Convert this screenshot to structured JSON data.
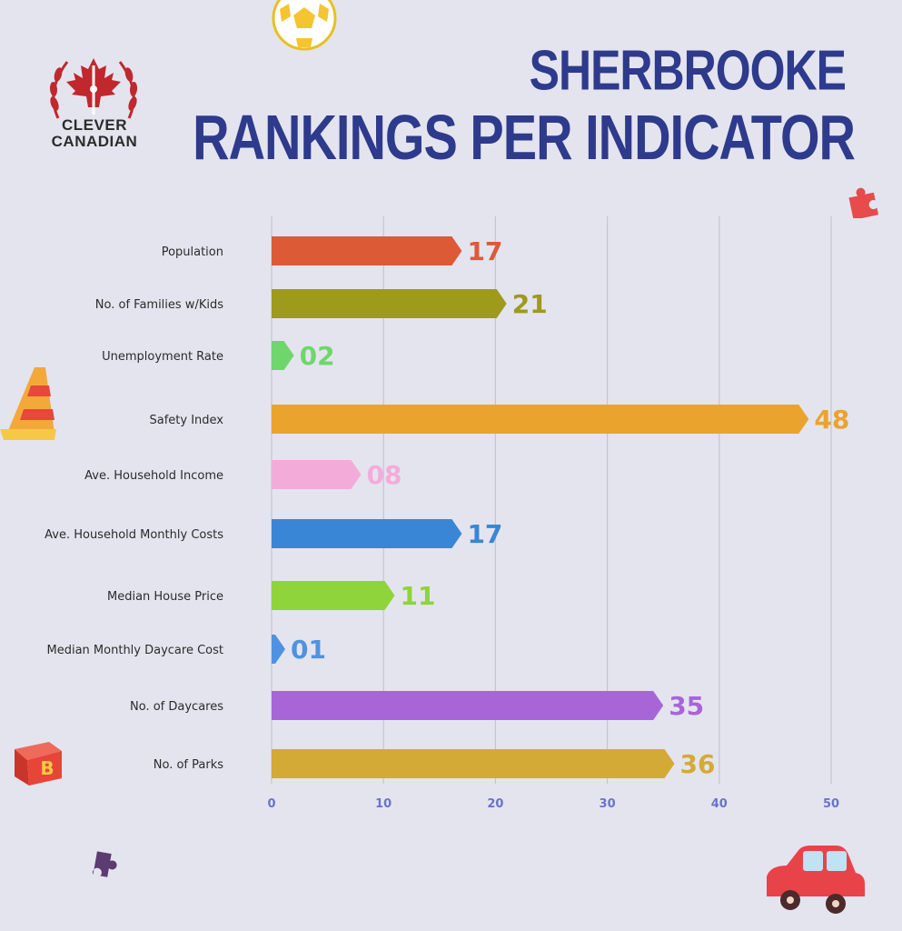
{
  "header": {
    "title_line1": "SHERBROOKE",
    "title_line2": "RANKINGS PER INDICATOR"
  },
  "logo": {
    "line1": "CLEVER",
    "line2": "CANADIAN",
    "icon": "maple-leaf-tower-laurel-icon"
  },
  "decorations": [
    "soccer-ball-icon",
    "puzzle-piece-icon",
    "traffic-cone-icon",
    "toy-block-icon",
    "toy-car-icon"
  ],
  "chart_data": {
    "type": "bar",
    "orientation": "horizontal",
    "categories": [
      "Population",
      "No. of Families w/Kids",
      "Unemployment Rate",
      "Safety Index",
      "Ave. Household Income",
      "Ave. Household Monthly Costs",
      "Median House Price",
      "Median Monthly Daycare Cost",
      "No. of Daycares",
      "No. of Parks"
    ],
    "values": [
      17,
      21,
      2,
      48,
      8,
      17,
      11,
      1,
      35,
      36
    ],
    "value_labels": [
      "17",
      "21",
      "02",
      "48",
      "08",
      "17",
      "11",
      "01",
      "35",
      "36"
    ],
    "colors": [
      "#dd5a36",
      "#9e9a1c",
      "#6fd66c",
      "#eaa42d",
      "#f3acd9",
      "#3a86d6",
      "#8ed43a",
      "#4f92e2",
      "#a865d8",
      "#d4aa36"
    ],
    "xticks": [
      "0",
      "10",
      "20",
      "30",
      "40",
      "50"
    ],
    "xlim": [
      0,
      50
    ],
    "grid": "vertical",
    "axis_color": "#6a73c9"
  }
}
